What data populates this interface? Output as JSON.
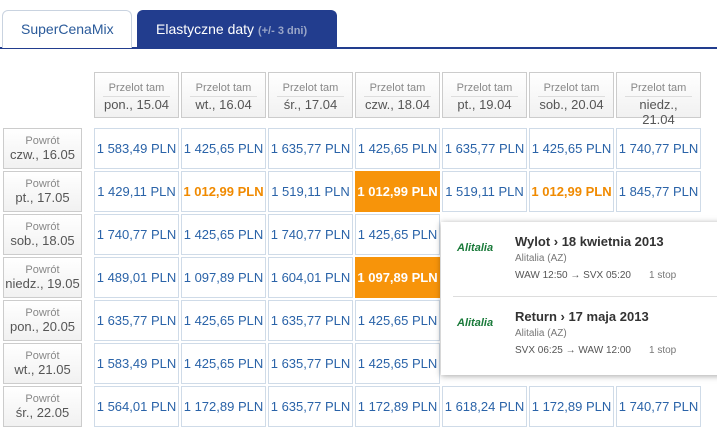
{
  "tabs": [
    "SuperCenaMix",
    {
      "label": "Elastyczne daty",
      "note": "(+/- 3 dni)"
    }
  ],
  "columns": [
    {
      "top": "Przelot tam",
      "date": "pon., 15.04"
    },
    {
      "top": "Przelot tam",
      "date": "wt., 16.04"
    },
    {
      "top": "Przelot tam",
      "date": "śr., 17.04"
    },
    {
      "top": "Przelot tam",
      "date": "czw., 18.04"
    },
    {
      "top": "Przelot tam",
      "date": "pt., 19.04"
    },
    {
      "top": "Przelot tam",
      "date": "sob., 20.04"
    },
    {
      "top": "Przelot tam",
      "date": "niedz., 21.04"
    }
  ],
  "rows": [
    {
      "top": "Powrót",
      "date": "czw., 16.05",
      "cells": [
        "1 583,49 PLN",
        "1 425,65 PLN",
        "1 635,77 PLN",
        "1 425,65 PLN",
        "1 635,77 PLN",
        "1 425,65 PLN",
        "1 740,77 PLN"
      ],
      "styles": [
        "normal",
        "normal",
        "normal",
        "normal",
        "normal",
        "normal",
        "normal"
      ]
    },
    {
      "top": "Powrót",
      "date": "pt., 17.05",
      "cells": [
        "1 429,11 PLN",
        "1 012,99 PLN",
        "1 519,11 PLN",
        "1 012,99 PLN",
        "1 519,11 PLN",
        "1 012,99 PLN",
        "1 845,77 PLN"
      ],
      "styles": [
        "normal",
        "cheap",
        "normal",
        "selected",
        "normal",
        "cheap",
        "normal"
      ]
    },
    {
      "top": "Powrót",
      "date": "sob., 18.05",
      "cells": [
        "1 740,77 PLN",
        "1 425,65 PLN",
        "1 740,77 PLN",
        "1 425,65 PLN",
        null,
        null,
        null
      ],
      "styles": [
        "normal",
        "normal",
        "normal",
        "normal",
        "normal",
        "normal",
        "normal"
      ]
    },
    {
      "top": "Powrót",
      "date": "niedz., 19.05",
      "cells": [
        "1 489,01 PLN",
        "1 097,89 PLN",
        "1 604,01 PLN",
        "1 097,89 PLN",
        null,
        null,
        null
      ],
      "styles": [
        "normal",
        "normal",
        "normal",
        "selected",
        "normal",
        "normal",
        "normal"
      ]
    },
    {
      "top": "Powrót",
      "date": "pon., 20.05",
      "cells": [
        "1 635,77 PLN",
        "1 425,65 PLN",
        "1 635,77 PLN",
        "1 425,65 PLN",
        null,
        null,
        null
      ],
      "styles": [
        "normal",
        "normal",
        "normal",
        "normal",
        "normal",
        "normal",
        "normal"
      ]
    },
    {
      "top": "Powrót",
      "date": "wt., 21.05",
      "cells": [
        "1 583,49 PLN",
        "1 425,65 PLN",
        "1 635,77 PLN",
        "1 425,65 PLN",
        null,
        null,
        null
      ],
      "styles": [
        "normal",
        "normal",
        "normal",
        "normal",
        "normal",
        "normal",
        "normal"
      ]
    },
    {
      "top": "Powrót",
      "date": "śr., 22.05",
      "cells": [
        "1 564,01 PLN",
        "1 172,89 PLN",
        "1 635,77 PLN",
        "1 172,89 PLN",
        "1 618,24 PLN",
        "1 172,89 PLN",
        "1 740,77 PLN"
      ],
      "styles": [
        "normal",
        "normal",
        "normal",
        "normal",
        "normal",
        "normal",
        "normal"
      ]
    }
  ],
  "popup": [
    {
      "logo": "Alitalia",
      "title": "Wylot › 18 kwietnia 2013",
      "airline": "Alitalia (AZ)",
      "route": "WAW 12:50 → SVX 05:20",
      "stops": "1 stop"
    },
    {
      "logo": "Alitalia",
      "title": "Return › 17 maja 2013",
      "airline": "Alitalia (AZ)",
      "route": "SVX 06:25 → WAW 12:00",
      "stops": "1 stop"
    }
  ]
}
